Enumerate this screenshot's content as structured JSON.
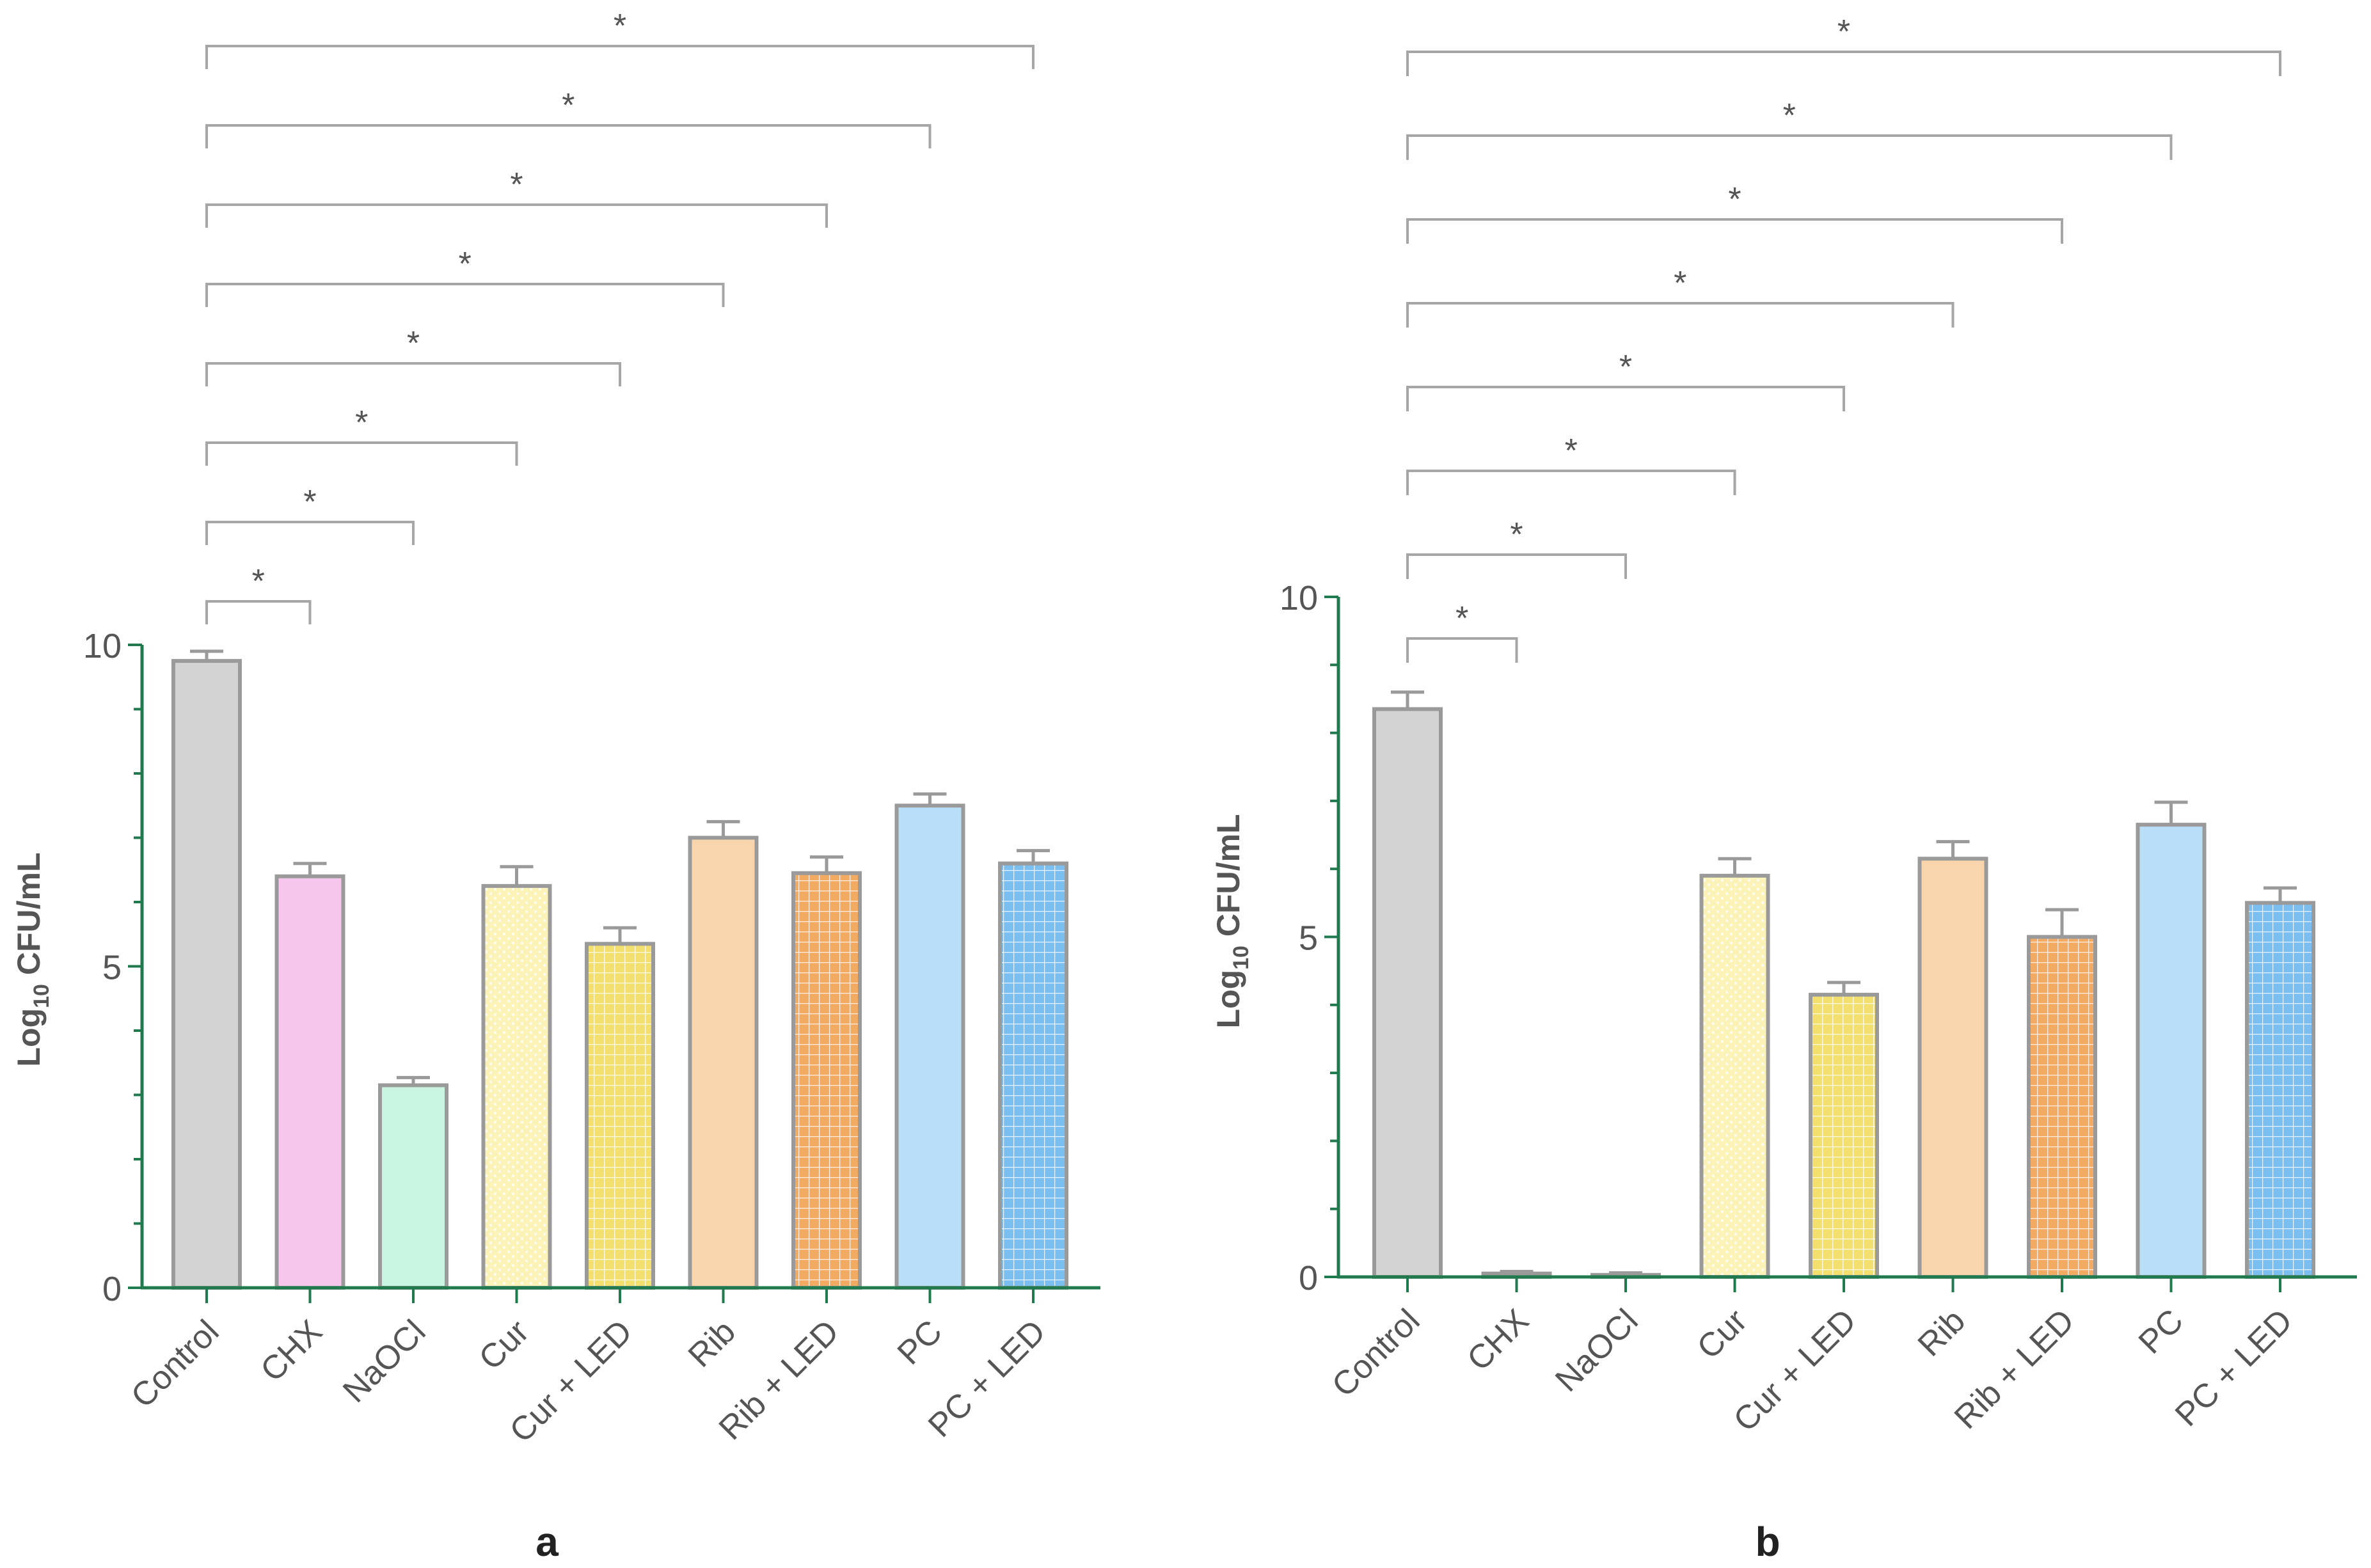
{
  "chart_data": [
    {
      "type": "bar",
      "panel_label": "a",
      "ylabel_main": "Log",
      "ylabel_sub": "10",
      "ylabel_rest": " CFU/mL",
      "ylim": [
        0,
        10
      ],
      "yticks": [
        0,
        5,
        10
      ],
      "categories": [
        "Control",
        "CHX",
        "NaOCl",
        "Cur",
        "Cur + LED",
        "Rib",
        "Rib + LED",
        "PC",
        "PC + LED"
      ],
      "values": [
        9.75,
        6.4,
        3.15,
        6.25,
        5.35,
        7.0,
        6.45,
        7.5,
        6.6
      ],
      "errors": [
        0.15,
        0.2,
        0.12,
        0.3,
        0.25,
        0.25,
        0.25,
        0.18,
        0.2
      ],
      "colors": [
        "#d3d3d3",
        "#f7c6ec",
        "#c9f5e3",
        "#fbf3b8",
        "#f2df6e",
        "#f8d5ad",
        "#f2ab62",
        "#b9def7",
        "#7bbef0"
      ],
      "patterns": [
        "none",
        "none",
        "none",
        "dots",
        "grid",
        "none",
        "grid",
        "none",
        "grid"
      ],
      "significance": [
        {
          "from": "Control",
          "to": "CHX",
          "label": "*"
        },
        {
          "from": "Control",
          "to": "NaOCl",
          "label": "*"
        },
        {
          "from": "Control",
          "to": "Cur",
          "label": "*"
        },
        {
          "from": "Control",
          "to": "Cur + LED",
          "label": "*"
        },
        {
          "from": "Control",
          "to": "Rib",
          "label": "*"
        },
        {
          "from": "Control",
          "to": "Rib + LED",
          "label": "*"
        },
        {
          "from": "Control",
          "to": "PC",
          "label": "*"
        },
        {
          "from": "Control",
          "to": "PC + LED",
          "label": "*"
        }
      ]
    },
    {
      "type": "bar",
      "panel_label": "b",
      "ylabel_main": "Log",
      "ylabel_sub": "10",
      "ylabel_rest": " CFU/mL",
      "ylim": [
        0,
        10
      ],
      "yticks": [
        0,
        5,
        10
      ],
      "categories": [
        "Control",
        "CHX",
        "NaOCl",
        "Cur",
        "Cur + LED",
        "Rib",
        "Rib + LED",
        "PC",
        "PC + LED"
      ],
      "values": [
        8.35,
        0.05,
        0.03,
        5.9,
        4.15,
        6.15,
        5.0,
        6.65,
        5.5
      ],
      "errors": [
        0.25,
        0.03,
        0.03,
        0.25,
        0.18,
        0.25,
        0.4,
        0.33,
        0.22
      ],
      "colors": [
        "#d3d3d3",
        "#f7c6ec",
        "#c9f5e3",
        "#fbf3b8",
        "#f2df6e",
        "#f8d5ad",
        "#f2ab62",
        "#b9def7",
        "#7bbef0"
      ],
      "patterns": [
        "none",
        "none",
        "none",
        "dots",
        "grid",
        "none",
        "grid",
        "none",
        "grid"
      ],
      "significance": [
        {
          "from": "Control",
          "to": "CHX",
          "label": "*"
        },
        {
          "from": "Control",
          "to": "NaOCl",
          "label": "*"
        },
        {
          "from": "Control",
          "to": "Cur",
          "label": "*"
        },
        {
          "from": "Control",
          "to": "Cur + LED",
          "label": "*"
        },
        {
          "from": "Control",
          "to": "Rib",
          "label": "*"
        },
        {
          "from": "Control",
          "to": "Rib + LED",
          "label": "*"
        },
        {
          "from": "Control",
          "to": "PC",
          "label": "*"
        },
        {
          "from": "Control",
          "to": "PC + LED",
          "label": "*"
        }
      ]
    }
  ],
  "style": {
    "axis_color": "#1f7a4d",
    "bar_outline": "#9a9a9a",
    "bracket_color": "#a6a6a6",
    "text_color": "#555555",
    "label_color": "#222222"
  }
}
